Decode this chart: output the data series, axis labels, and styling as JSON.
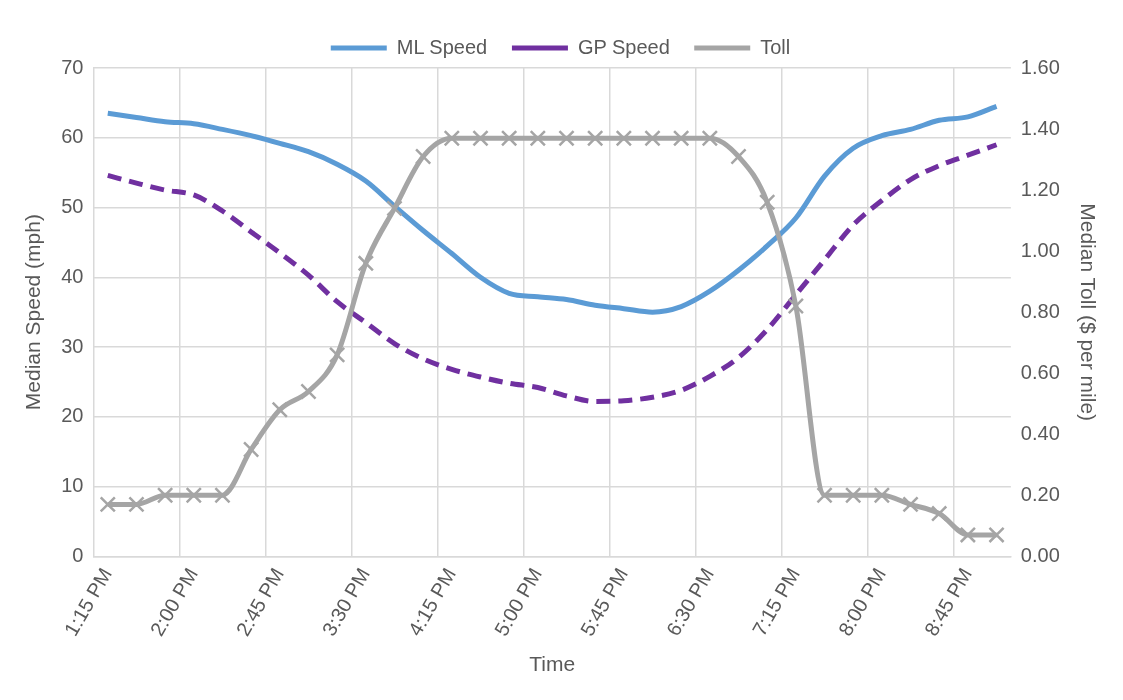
{
  "chart_data": {
    "type": "line",
    "xlabel": "Time",
    "ylabel": "Median Speed (mph)",
    "y2label": "Median Toll ($ per mile)",
    "categories": [
      "1:15 PM",
      null,
      null,
      "2:00 PM",
      null,
      null,
      "2:45 PM",
      null,
      null,
      "3:30 PM",
      null,
      null,
      "4:15 PM",
      null,
      null,
      "5:00 PM",
      null,
      null,
      "5:45 PM",
      null,
      null,
      "6:30 PM",
      null,
      null,
      "7:15 PM",
      null,
      null,
      "8:00 PM",
      null,
      null,
      "8:45 PM",
      null
    ],
    "series": [
      {
        "name": "ML Speed",
        "color": "#5b9bd5",
        "marker": "none",
        "line_style": "solid",
        "values": [
          63.5,
          62.9,
          62.3,
          62.0,
          61.2,
          60.3,
          59.2,
          58.0,
          56.2,
          53.8,
          50.2,
          46.7,
          43.4,
          40.0,
          37.7,
          37.2,
          36.8,
          36.0,
          35.5,
          35.0,
          35.8,
          38.0,
          41.0,
          44.5,
          48.5,
          54.5,
          58.5,
          60.3,
          61.2,
          62.5,
          63.0,
          64.5
        ]
      },
      {
        "name": "GP Speed",
        "color": "#7030a0",
        "marker": "none",
        "line_style": "dashed",
        "values": [
          54.6,
          53.5,
          52.5,
          51.8,
          49.5,
          46.5,
          43.5,
          40.3,
          36.5,
          33.5,
          30.5,
          28.3,
          26.8,
          25.7,
          24.8,
          24.2,
          23.0,
          22.2,
          22.3,
          22.8,
          23.8,
          25.8,
          28.5,
          32.5,
          37.5,
          42.5,
          47.5,
          51.0,
          54.0,
          56.0,
          57.5,
          59.0
        ]
      },
      {
        "name": "Toll",
        "color": "#a5a5a5",
        "marker": "cross",
        "line_style": "solid",
        "axis": "y2",
        "values": [
          0.17,
          0.17,
          0.2,
          0.2,
          0.2,
          0.35,
          0.48,
          0.54,
          0.66,
          0.96,
          1.14,
          1.31,
          1.37,
          1.37,
          1.37,
          1.37,
          1.37,
          1.37,
          1.37,
          1.37,
          1.37,
          1.37,
          1.31,
          1.16,
          0.82,
          0.2,
          0.2,
          0.2,
          0.17,
          0.14,
          0.07,
          0.07
        ]
      }
    ],
    "ylim": [
      0,
      70
    ],
    "yticks": [
      0,
      10,
      20,
      30,
      40,
      50,
      60,
      70
    ],
    "y2lim": [
      0,
      1.6
    ],
    "y2ticks": [
      {
        "value": 0,
        "label": "0.00"
      },
      {
        "value": 0.2,
        "label": "0.20"
      },
      {
        "value": 0.4,
        "label": "0.40"
      },
      {
        "value": 0.6,
        "label": "0.60"
      },
      {
        "value": 0.8,
        "label": "0.80"
      },
      {
        "value": 1.0,
        "label": "1.00"
      },
      {
        "value": 1.2,
        "label": "1.20"
      },
      {
        "value": 1.4,
        "label": "1.40"
      },
      {
        "value": 1.6,
        "label": "1.60"
      }
    ],
    "grid": true,
    "legend": "top"
  }
}
